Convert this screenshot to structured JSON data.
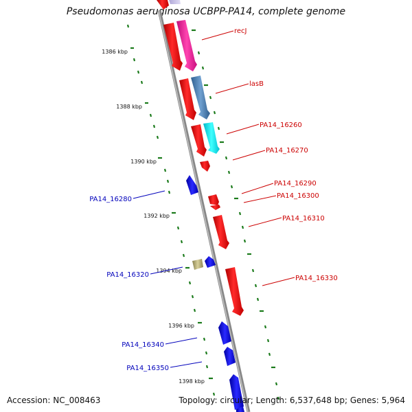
{
  "title": "Pseudomonas aeruginosa UCBPP-PA14, complete genome",
  "footer": {
    "accession": "Accession: NC_008463",
    "topology": "Topology: circular; Length: 6,537,648 bp; Genes: 5,964"
  },
  "scale_labels": [
    "1386 kbp",
    "1388 kbp",
    "1390 kbp",
    "1392 kbp",
    "1394 kbp",
    "1396 kbp",
    "1398 kbp"
  ],
  "forward_genes": [
    "recJ",
    "lasB",
    "PA14_16260",
    "PA14_16270",
    "PA14_16290",
    "PA14_16300",
    "PA14_16310",
    "PA14_16330"
  ],
  "reverse_genes": [
    "PA14_16280",
    "PA14_16320",
    "PA14_16340",
    "PA14_16350"
  ],
  "colors": {
    "forward_label": "#cc0000",
    "reverse_label": "#0000bb",
    "forward_gene": "#ee1111",
    "reverse_gene": "#1515dd",
    "tick": "#1a7a1a",
    "backbone": "#888888"
  }
}
